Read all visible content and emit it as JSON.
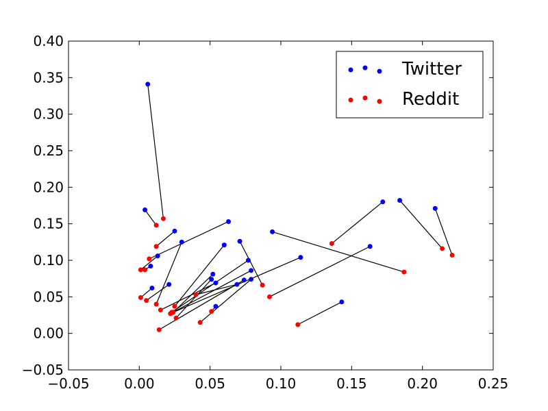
{
  "chart_data": {
    "type": "scatter",
    "title": "",
    "xlabel": "",
    "ylabel": "",
    "xlim": [
      -0.05,
      0.25
    ],
    "ylim": [
      -0.05,
      0.4
    ],
    "x_ticks": [
      "−0.05",
      "0.00",
      "0.05",
      "0.10",
      "0.15",
      "0.20",
      "0.25"
    ],
    "y_ticks": [
      "−0.05",
      "0.00",
      "0.05",
      "0.10",
      "0.15",
      "0.20",
      "0.25",
      "0.30",
      "0.35",
      "0.40"
    ],
    "grid": false,
    "legend_position": "top-right",
    "connectors": "each Twitter point is joined by a black line to its paired Reddit point",
    "series": [
      {
        "name": "Twitter",
        "color": "#0000ff"
      },
      {
        "name": "Reddit",
        "color": "#ff0000"
      }
    ],
    "pairs": [
      {
        "twitter": [
          0.006,
          0.341
        ],
        "reddit": [
          0.017,
          0.157
        ]
      },
      {
        "twitter": [
          0.004,
          0.169
        ],
        "reddit": [
          0.012,
          0.148
        ]
      },
      {
        "twitter": [
          0.025,
          0.14
        ],
        "reddit": [
          0.012,
          0.119
        ]
      },
      {
        "twitter": [
          0.063,
          0.153
        ],
        "reddit": [
          0.007,
          0.102
        ]
      },
      {
        "twitter": [
          0.03,
          0.125
        ],
        "reddit": [
          0.012,
          0.04
        ]
      },
      {
        "twitter": [
          0.013,
          0.106
        ],
        "reddit": [
          0.001,
          0.087
        ]
      },
      {
        "twitter": [
          0.008,
          0.092
        ],
        "reddit": [
          0.004,
          0.087
        ]
      },
      {
        "twitter": [
          0.009,
          0.062
        ],
        "reddit": [
          0.001,
          0.049
        ]
      },
      {
        "twitter": [
          0.021,
          0.067
        ],
        "reddit": [
          0.005,
          0.045
        ]
      },
      {
        "twitter": [
          0.06,
          0.121
        ],
        "reddit": [
          0.025,
          0.037
        ]
      },
      {
        "twitter": [
          0.071,
          0.126
        ],
        "reddit": [
          0.087,
          0.066
        ]
      },
      {
        "twitter": [
          0.077,
          0.1
        ],
        "reddit": [
          0.023,
          0.029
        ]
      },
      {
        "twitter": [
          0.079,
          0.086
        ],
        "reddit": [
          0.022,
          0.027
        ]
      },
      {
        "twitter": [
          0.052,
          0.081
        ],
        "reddit": [
          0.024,
          0.029
        ]
      },
      {
        "twitter": [
          0.051,
          0.074
        ],
        "reddit": [
          0.026,
          0.021
        ]
      },
      {
        "twitter": [
          0.054,
          0.069
        ],
        "reddit": [
          0.015,
          0.032
        ]
      },
      {
        "twitter": [
          0.069,
          0.067
        ],
        "reddit": [
          0.04,
          0.053
        ]
      },
      {
        "twitter": [
          0.074,
          0.073
        ],
        "reddit": [
          0.014,
          0.005
        ]
      },
      {
        "twitter": [
          0.079,
          0.074
        ],
        "reddit": [
          0.043,
          0.015
        ]
      },
      {
        "twitter": [
          0.054,
          0.037
        ],
        "reddit": [
          0.051,
          0.03
        ]
      },
      {
        "twitter": [
          0.114,
          0.104
        ],
        "reddit": [
          0.023,
          0.028
        ]
      },
      {
        "twitter": [
          0.094,
          0.139
        ],
        "reddit": [
          0.187,
          0.084
        ]
      },
      {
        "twitter": [
          0.163,
          0.119
        ],
        "reddit": [
          0.092,
          0.05
        ]
      },
      {
        "twitter": [
          0.172,
          0.18
        ],
        "reddit": [
          0.136,
          0.123
        ]
      },
      {
        "twitter": [
          0.184,
          0.182
        ],
        "reddit": [
          0.214,
          0.116
        ]
      },
      {
        "twitter": [
          0.209,
          0.171
        ],
        "reddit": [
          0.221,
          0.107
        ]
      },
      {
        "twitter": [
          0.143,
          0.043
        ],
        "reddit": [
          0.112,
          0.012
        ]
      }
    ]
  }
}
